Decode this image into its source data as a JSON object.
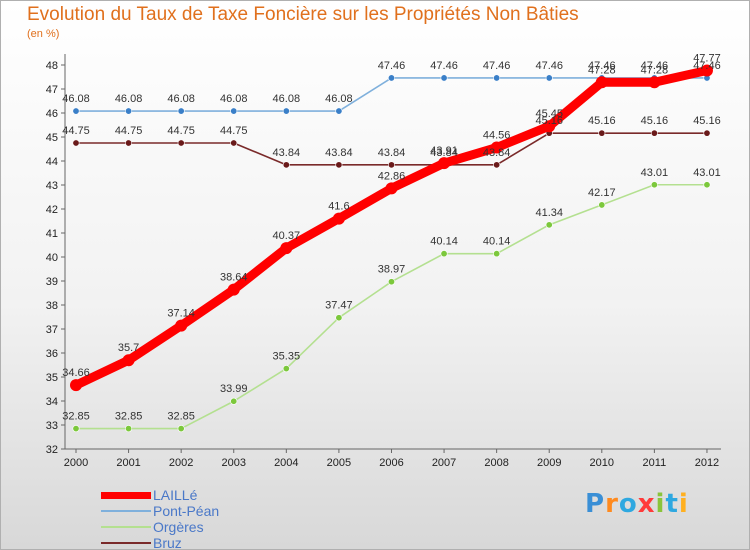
{
  "title": "Evolution du Taux de Taxe Foncière sur les Propriétés Non Bâties",
  "subtitle": "(en %)",
  "logo": "Proxiti",
  "chart_data": {
    "type": "line",
    "title": "Evolution du Taux de Taxe Foncière sur les Propriétés Non Bâties",
    "ylabel": "(en %)",
    "xlabel": "",
    "x": [
      "2000",
      "2001",
      "2002",
      "2003",
      "2004",
      "2005",
      "2006",
      "2007",
      "2008",
      "2009",
      "2010",
      "2011",
      "2012"
    ],
    "ylim": [
      32,
      48
    ],
    "yticks": [
      32,
      33,
      34,
      35,
      36,
      37,
      38,
      39,
      40,
      41,
      42,
      43,
      44,
      45,
      46,
      47,
      48
    ],
    "grid": false,
    "legend_position": "bottom-left",
    "series": [
      {
        "name": "LAILLé",
        "color": "#ff0000",
        "point_color": "#ff0000",
        "values": [
          34.66,
          35.7,
          37.14,
          38.64,
          40.37,
          41.6,
          42.86,
          43.91,
          44.56,
          45.45,
          47.28,
          47.28,
          47.77
        ],
        "labels": [
          "34.66",
          "35.7",
          "37.14",
          "38.64",
          "40.37",
          "41.6",
          "42.86",
          "43.91",
          "44.56",
          "45.45",
          "47.28",
          "47.28",
          "47.77"
        ]
      },
      {
        "name": "Pont-Péan",
        "color": "#7fb0dc",
        "point_color": "#3a7fc8",
        "values": [
          46.08,
          46.08,
          46.08,
          46.08,
          46.08,
          46.08,
          47.46,
          47.46,
          47.46,
          47.46,
          47.46,
          47.46,
          47.46
        ],
        "labels": [
          "46.08",
          "46.08",
          "46.08",
          "46.08",
          "46.08",
          "46.08",
          "47.46",
          "47.46",
          "47.46",
          "47.46",
          "47.46",
          "47.46",
          "47.46"
        ]
      },
      {
        "name": "Orgères",
        "color": "#b4e090",
        "point_color": "#7cc83c",
        "values": [
          32.85,
          32.85,
          32.85,
          33.99,
          35.35,
          37.47,
          38.97,
          40.14,
          40.14,
          41.34,
          42.17,
          43.01,
          43.01
        ],
        "labels": [
          "32.85",
          "32.85",
          "32.85",
          "33.99",
          "35.35",
          "37.47",
          "38.97",
          "40.14",
          "40.14",
          "41.34",
          "42.17",
          "43.01",
          "43.01"
        ]
      },
      {
        "name": "Bruz",
        "color": "#7a2a2a",
        "point_color": "#6a1a1a",
        "values": [
          44.75,
          44.75,
          44.75,
          44.75,
          43.84,
          43.84,
          43.84,
          43.84,
          43.84,
          45.16,
          45.16,
          45.16,
          45.16
        ],
        "labels": [
          "44.75",
          "44.75",
          "44.75",
          "44.75",
          "43.84",
          "43.84",
          "43.84",
          "43.84",
          "43.84",
          "45.16",
          "45.16",
          "45.16",
          "45.16"
        ]
      }
    ]
  }
}
